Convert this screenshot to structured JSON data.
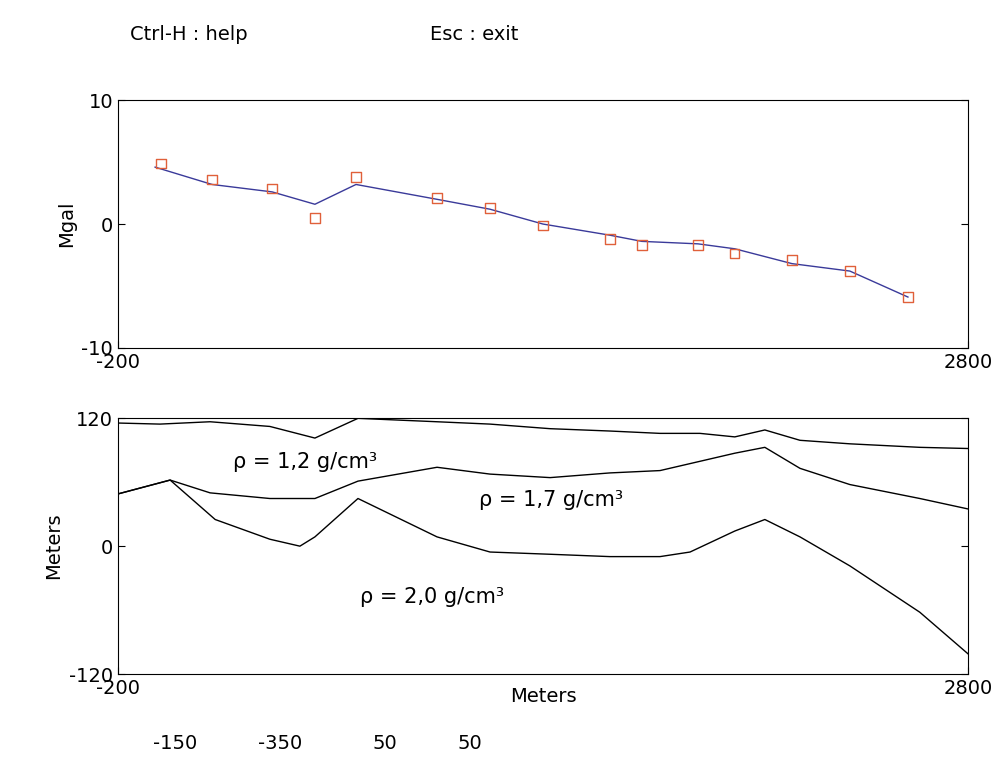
{
  "header": [
    "Ctrl-H : help",
    "Esc : exit"
  ],
  "chart_data": [
    {
      "type": "line",
      "ylabel": "Mgal",
      "xlim": [
        -200,
        2800
      ],
      "xticks": [
        -200,
        2800
      ],
      "ylim": [
        -10,
        10
      ],
      "yticks": [
        -10,
        0,
        10
      ],
      "grid": false,
      "series": [
        {
          "type": "scatter",
          "color": "#e0603a",
          "marker": "square",
          "x": [
            -48,
            132,
            344,
            495,
            640,
            926,
            1113,
            1300,
            1536,
            1649,
            1847,
            1977,
            2179,
            2383,
            2588
          ],
          "values": [
            4.9,
            3.6,
            2.9,
            0.5,
            3.8,
            2.1,
            1.3,
            -0.1,
            -1.2,
            -1.7,
            -1.7,
            -2.4,
            -2.9,
            -3.8,
            -5.9
          ]
        },
        {
          "type": "line",
          "color": "#3a3a9a",
          "line_style": "solid",
          "x": [
            -69,
            132,
            344,
            495,
            640,
            926,
            1113,
            1300,
            1536,
            1649,
            1847,
            1977,
            2179,
            2383,
            2588
          ],
          "values": [
            4.6,
            3.2,
            2.6,
            1.6,
            3.2,
            2.0,
            1.2,
            0.0,
            -0.9,
            -1.4,
            -1.6,
            -2.0,
            -3.2,
            -3.8,
            -5.9
          ]
        }
      ]
    },
    {
      "type": "line",
      "xlabel": "Meters",
      "ylabel": "Meters",
      "xlim": [
        -200,
        2800
      ],
      "xticks": [
        -200,
        2800
      ],
      "ylim": [
        -120,
        120
      ],
      "yticks": [
        -120,
        0,
        120
      ],
      "grid": false,
      "annotations": [
        "ρ = 1,2 g/cm³",
        "ρ = 1,7 g/cm³",
        "ρ = 2,0 g/cm³"
      ],
      "series": [
        {
          "color": "#000000",
          "line_style": "solid",
          "x": [
            -200,
            -52,
            125,
            336,
            495,
            647,
            926,
            1113,
            1325,
            1536,
            1713,
            1854,
            1977,
            2083,
            2207,
            2383,
            2630,
            2800
          ],
          "values": [
            115.5,
            114.5,
            116.7,
            112.3,
            101.4,
            119.9,
            116.7,
            114.5,
            110.2,
            108,
            105.8,
            105.8,
            102.5,
            109,
            99.3,
            96,
            92.7,
            91.6
          ]
        },
        {
          "color": "#000000",
          "line_style": "solid",
          "x": [
            -200,
            -16,
            125,
            336,
            495,
            647,
            926,
            1113,
            1325,
            1536,
            1713,
            1854,
            1977,
            2083,
            2207,
            2383,
            2630,
            2800
          ],
          "values": [
            49,
            62,
            50,
            44.7,
            44.7,
            61,
            74,
            67.6,
            64.3,
            68.7,
            70.9,
            79.6,
            87.2,
            92.7,
            73,
            57.8,
            44.7,
            34.9
          ]
        },
        {
          "color": "#000000",
          "line_style": "solid",
          "x": [
            -200,
            -16,
            143,
            336,
            442,
            495,
            647,
            926,
            1113,
            1325,
            1536,
            1713,
            1819,
            1977,
            2083,
            2207,
            2383,
            2630,
            2800
          ],
          "values": [
            49,
            62,
            25,
            6.5,
            0,
            8.7,
            44.7,
            8.7,
            -5.5,
            -7.6,
            -9.8,
            -9.8,
            -5.5,
            14.2,
            25,
            8.7,
            -18.5,
            -62,
            -101
          ]
        }
      ]
    }
  ],
  "footer": [
    "-150",
    "-350",
    "50",
    "50"
  ]
}
